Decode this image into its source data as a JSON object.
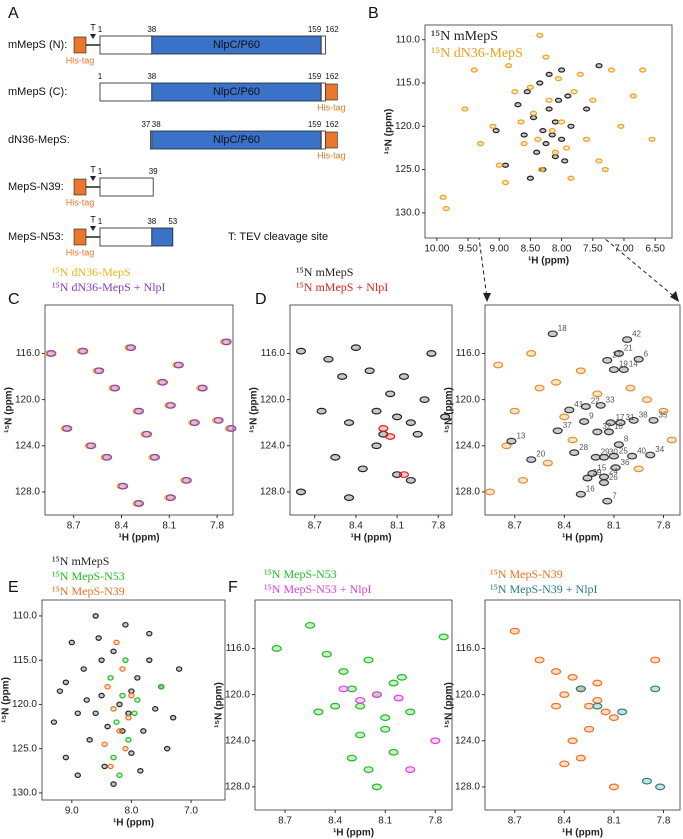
{
  "panel_a": {
    "letter": "A",
    "domain_name": "NlpC/P60",
    "tag_label": "His-tag",
    "tev_label": "T",
    "key": "T: TEV cleavage site",
    "rows": [
      {
        "label": "mMepS (N):",
        "residues": [
          1,
          38,
          159,
          162
        ],
        "domain": 1,
        "tag": "N",
        "tev": true
      },
      {
        "label": "mMepS (C):",
        "residues": [
          1,
          38,
          159,
          162
        ],
        "domain": 1,
        "tag": "C",
        "tev": false
      },
      {
        "label": "dN36-MepS:",
        "residues": [
          37,
          38,
          159,
          162
        ],
        "domain": 1,
        "tag": "C",
        "tev": false
      },
      {
        "label": "MepS-N39:",
        "residues": [
          1,
          39
        ],
        "domain": null,
        "tag": "N",
        "tev": true
      },
      {
        "label": "MepS-N53:",
        "residues": [
          1,
          38,
          53
        ],
        "domain": 1,
        "tag": "N",
        "tev": true
      }
    ]
  },
  "chart_data": [
    {
      "type": "scatter",
      "panel": "B",
      "xlabel": "¹H (ppm)",
      "ylabel": "¹⁵N (ppm)",
      "y_inverted": true,
      "legend": "inside",
      "xlim": [
        10.19,
        6.23
      ],
      "ylim": [
        108.3,
        132.9
      ],
      "xticks": [
        {
          "value": 10,
          "label": "10.00"
        },
        {
          "value": 9.5,
          "label": "9.50"
        },
        {
          "value": 9,
          "label": "9.00"
        },
        {
          "value": 8.5,
          "label": "8.50"
        },
        {
          "value": 8,
          "label": "8.00"
        },
        {
          "value": 7.5,
          "label": "7.50"
        },
        {
          "value": 7,
          "label": "7.00"
        },
        {
          "value": 6.5,
          "label": "6.50"
        }
      ],
      "yticks": [
        {
          "value": 110,
          "label": "110.0"
        },
        {
          "value": 115,
          "label": "115.0"
        },
        {
          "value": 120,
          "label": "120.0"
        },
        {
          "value": 125,
          "label": "125.0"
        },
        {
          "value": 130,
          "label": "130.0"
        }
      ],
      "series": [
        {
          "name": "¹⁵N mMepS",
          "color": "#222222",
          "x": [
            9.05,
            8.9,
            8.7,
            8.6,
            8.55,
            8.45,
            8.4,
            8.35,
            8.3,
            8.25,
            8.2,
            8.15,
            8.1,
            8.05,
            8.0,
            7.95,
            7.9,
            7.85,
            8.5,
            8.3,
            8.2,
            8.1,
            8.0,
            7.6,
            7.4
          ],
          "values": [
            120.5,
            124.5,
            117.5,
            121,
            116,
            119,
            123,
            115,
            120.5,
            122,
            118,
            121,
            119.5,
            117,
            121.5,
            124,
            116.5,
            120,
            126,
            125,
            114,
            123.5,
            113.5,
            118,
            113
          ]
        },
        {
          "name": "¹⁵N dN36-MepS",
          "color": "#f0a020",
          "x": [
            9.9,
            9.85,
            9.55,
            9.4,
            9.3,
            9.1,
            9.0,
            8.85,
            8.75,
            8.65,
            8.6,
            8.5,
            8.45,
            8.38,
            8.32,
            8.25,
            8.2,
            8.15,
            8.1,
            8.05,
            8.0,
            7.92,
            7.85,
            7.8,
            7.7,
            7.6,
            7.5,
            7.4,
            7.3,
            7.2,
            7.05,
            6.85,
            6.7,
            6.55,
            8.35,
            8.9
          ],
          "values": [
            128.2,
            129.5,
            118,
            113.5,
            122,
            120,
            124.5,
            113,
            116,
            119.5,
            122,
            115.5,
            118.5,
            121.5,
            125,
            112,
            117,
            120.5,
            123,
            114.5,
            119.5,
            122.5,
            126,
            116,
            114,
            121.5,
            117,
            124,
            125,
            113.5,
            120,
            116.5,
            113.5,
            121.5,
            109.5,
            126.5
          ]
        }
      ]
    },
    {
      "type": "scatter",
      "panel": "C",
      "xlabel": "¹H (ppm)",
      "ylabel": "¹⁵N (ppm)",
      "y_inverted": true,
      "legend": "above",
      "xlim": [
        8.88,
        7.7
      ],
      "ylim": [
        111.8,
        130
      ],
      "xticks": [
        8.7,
        8.4,
        8.1,
        7.8
      ],
      "yticks": [
        {
          "value": 116,
          "label": "116.0"
        },
        {
          "value": 120,
          "label": "120.0"
        },
        {
          "value": 124,
          "label": "124.0"
        },
        {
          "value": 128,
          "label": "128.0"
        }
      ],
      "series": [
        {
          "name": "¹⁵N dN36-MepS",
          "color": "#f2b21c",
          "x": [
            8.85,
            8.65,
            8.55,
            8.45,
            8.35,
            8.3,
            8.25,
            8.15,
            8.1,
            8.05,
            7.95,
            7.9,
            7.8,
            7.72,
            8.5,
            8.2,
            8.0,
            8.4,
            8.6,
            8.75,
            7.75,
            8.1,
            8.3
          ],
          "values": [
            116,
            115.8,
            117.5,
            119,
            115.5,
            121,
            123,
            118.5,
            120.5,
            117,
            122,
            119,
            121.8,
            122.5,
            125,
            125,
            127,
            127.5,
            124,
            122.5,
            115,
            128.5,
            129
          ]
        },
        {
          "name": "¹⁵N dN36-MepS + NlpI",
          "color": "#8a3cc8",
          "x": [
            8.84,
            8.64,
            8.54,
            8.44,
            8.34,
            8.29,
            8.24,
            8.14,
            8.09,
            8.04,
            7.94,
            7.89,
            7.79,
            7.71,
            8.49,
            8.19,
            7.99,
            8.39,
            8.59,
            8.74,
            7.74,
            8.09,
            8.29
          ],
          "values": [
            116,
            115.8,
            117.5,
            119,
            115.5,
            121,
            123,
            118.5,
            120.5,
            117,
            122,
            119,
            121.8,
            122.5,
            125,
            125,
            127,
            127.5,
            124,
            122.5,
            115,
            128.5,
            129
          ]
        }
      ]
    },
    {
      "type": "scatter",
      "panel": "D",
      "xlabel": "¹H (ppm)",
      "ylabel": "¹⁵N (ppm)",
      "y_inverted": true,
      "legend": "above",
      "xlim": [
        8.88,
        7.7
      ],
      "ylim": [
        111.8,
        130
      ],
      "xticks": [
        8.7,
        8.4,
        8.1,
        7.8
      ],
      "yticks": [
        {
          "value": 116,
          "label": "116.0"
        },
        {
          "value": 120,
          "label": "120.0"
        },
        {
          "value": 124,
          "label": "124.0"
        },
        {
          "value": 128,
          "label": "128.0"
        }
      ],
      "series": [
        {
          "name": "¹⁵N mMepS",
          "color": "#222222",
          "x": [
            8.8,
            8.6,
            8.5,
            8.45,
            8.4,
            8.3,
            8.25,
            8.2,
            8.15,
            8.1,
            8.05,
            8.0,
            7.9,
            7.85,
            7.75,
            8.65,
            8.55,
            8.35,
            8.0,
            8.25,
            8.45,
            8.1,
            7.95,
            8.8
          ],
          "values": [
            115.8,
            116.5,
            118,
            122,
            115.5,
            117.5,
            121,
            123,
            119.5,
            121.5,
            118,
            122,
            120,
            116,
            121.5,
            121,
            125,
            126,
            127,
            124,
            128.5,
            126.5,
            123,
            128
          ]
        },
        {
          "name": "¹⁵N mMepS + NlpI",
          "color": "#e02020",
          "x": [
            8.2,
            8.15,
            8.05
          ],
          "values": [
            122.5,
            123.2,
            126.5
          ]
        }
      ]
    },
    {
      "type": "scatter",
      "xlabel": "¹H (ppm)",
      "ylabel": "¹⁵N (ppm)",
      "y_inverted": true,
      "legend": "none",
      "xlim": [
        8.88,
        7.7
      ],
      "ylim": [
        111.8,
        130
      ],
      "xticks": [
        8.7,
        8.4,
        8.1,
        7.8
      ],
      "yticks": [
        {
          "value": 116,
          "label": "116.0"
        },
        {
          "value": 120,
          "label": "120.0"
        },
        {
          "value": 124,
          "label": "124.0"
        },
        {
          "value": 128,
          "label": "128.0"
        }
      ],
      "series": [
        {
          "color": "#e0902a",
          "x": [
            8.8,
            8.75,
            8.6,
            8.55,
            8.45,
            8.4,
            8.3,
            8.2,
            8.0,
            7.9,
            7.8,
            7.75,
            8.65,
            8.5,
            8.35,
            7.95,
            8.85,
            8.7
          ],
          "values": [
            117,
            124,
            116,
            119,
            118.5,
            121.5,
            117.5,
            119.5,
            119,
            120,
            121,
            123.5,
            127,
            125.5,
            123.5,
            126,
            128,
            121
          ]
        },
        {
          "color": "#333333",
          "x": [
            8.47,
            8.02,
            8.07,
            8.14,
            7.95,
            8.1,
            8.04,
            8.27,
            8.18,
            8.37,
            8.28,
            8.44,
            8.12,
            8.06,
            7.98,
            7.86,
            8.72,
            8.2,
            8.13,
            8.07,
            8.34,
            8.21,
            8.16,
            8.1,
            7.99,
            7.88,
            8.6,
            8.09,
            8.16,
            8.26,
            8.23,
            8.16,
            8.3,
            8.14
          ],
          "values": [
            114.3,
            114.8,
            116,
            116.6,
            116.5,
            117.4,
            117.4,
            120.6,
            120.5,
            120.9,
            121.9,
            122.7,
            122,
            122,
            121.8,
            121.8,
            123.6,
            122.8,
            122.8,
            123.9,
            124.6,
            125,
            125,
            124.9,
            124.9,
            124.8,
            125.2,
            125.9,
            126.7,
            126.8,
            126.4,
            127.2,
            128.2,
            128.8
          ],
          "point_labels": [
            "18",
            "42",
            "21",
            "27",
            "6",
            "19",
            "14",
            "22",
            "33",
            "41",
            "9",
            "37",
            "17",
            "31",
            "38",
            "35",
            "13",
            "32",
            "10",
            "8",
            "28",
            "29",
            "30",
            "25",
            "40",
            "34",
            "20",
            "36",
            "24",
            "39",
            "15",
            "26",
            "16",
            "7"
          ]
        }
      ]
    },
    {
      "type": "scatter",
      "panel": "E",
      "xlabel": "¹H (ppm)",
      "ylabel": "¹⁵N (ppm)",
      "y_inverted": true,
      "legend": "above",
      "xlim": [
        9.5,
        6.43
      ],
      "ylim": [
        108.2,
        130.8
      ],
      "xticks": [
        {
          "value": 9,
          "label": "9.0"
        },
        {
          "value": 8,
          "label": "8.0"
        },
        {
          "value": 7,
          "label": "7.0"
        }
      ],
      "yticks": [
        {
          "value": 110,
          "label": "110.0"
        },
        {
          "value": 115,
          "label": "115.0"
        },
        {
          "value": 120,
          "label": "120.0"
        },
        {
          "value": 125,
          "label": "125.0"
        },
        {
          "value": 130,
          "label": "130.0"
        }
      ],
      "series": [
        {
          "name": "¹⁵N mMepS",
          "color": "#222222",
          "x": [
            9.3,
            9.2,
            9.1,
            9.0,
            8.9,
            8.8,
            8.7,
            8.6,
            8.5,
            8.45,
            8.4,
            8.3,
            8.2,
            8.1,
            8.0,
            7.9,
            7.8,
            7.7,
            7.6,
            7.5,
            7.4,
            7.3,
            8.9,
            8.6,
            8.3,
            8.0,
            7.7,
            9.1,
            8.5,
            8.15,
            7.85,
            7.2,
            8.75,
            8.55,
            8.05
          ],
          "values": [
            122,
            118.5,
            126,
            113,
            121,
            116,
            124,
            110,
            119,
            127,
            122.5,
            114,
            120,
            111,
            125.5,
            117,
            123,
            115,
            120.5,
            118,
            125,
            121.5,
            128,
            121,
            129,
            118.5,
            112,
            117.5,
            115,
            123,
            127.5,
            116,
            119.5,
            112.5,
            121
          ]
        },
        {
          "name": "¹⁵N MepS-N53",
          "color": "#22bb22",
          "x": [
            8.35,
            8.25,
            8.15,
            8.05,
            7.95,
            8.3,
            8.1,
            8.2,
            7.9,
            7.5
          ],
          "values": [
            117,
            122,
            119,
            124,
            121,
            126,
            115,
            128,
            119.5,
            118
          ]
        },
        {
          "name": "¹⁵N MepS-N39",
          "color": "#f07020",
          "x": [
            8.4,
            8.3,
            8.2,
            8.1,
            8.35,
            8.15,
            8.25,
            8.05,
            8.45,
            8.0
          ],
          "values": [
            118,
            120.5,
            123,
            125,
            127,
            116,
            113,
            121.5,
            124.5,
            119
          ]
        }
      ]
    },
    {
      "type": "scatter",
      "panel": "F",
      "xlabel": "¹H (ppm)",
      "ylabel": "¹⁵N (ppm)",
      "y_inverted": true,
      "legend": "above",
      "xlim": [
        8.88,
        7.7
      ],
      "ylim": [
        111.8,
        130
      ],
      "xticks": [
        8.7,
        8.4,
        8.1,
        7.8
      ],
      "yticks": [
        {
          "value": 116,
          "label": "116.0"
        },
        {
          "value": 120,
          "label": "120.0"
        },
        {
          "value": 124,
          "label": "124.0"
        },
        {
          "value": 128,
          "label": "128.0"
        }
      ],
      "series": [
        {
          "name": "¹⁵N MepS-N53",
          "color": "#22bb22",
          "x": [
            8.75,
            8.55,
            8.45,
            8.35,
            8.3,
            8.25,
            8.2,
            8.15,
            8.1,
            8.05,
            8.0,
            7.95,
            8.4,
            8.25,
            8.1,
            8.3,
            8.2,
            8.05,
            8.5,
            7.75,
            8.15
          ],
          "values": [
            116,
            114,
            116.5,
            118,
            119.5,
            121,
            117,
            120,
            122,
            119,
            118.5,
            121.5,
            121,
            123.5,
            123,
            125.5,
            126.5,
            125,
            121.5,
            115,
            128
          ]
        },
        {
          "name": "¹⁵N MepS-N53 + NlpI",
          "color": "#e040e0",
          "x": [
            8.35,
            8.25,
            8.15,
            8.02,
            7.95,
            7.8
          ],
          "values": [
            119.5,
            120.5,
            120,
            120.3,
            126.5,
            124
          ]
        }
      ]
    },
    {
      "type": "scatter",
      "xlabel": "¹H (ppm)",
      "ylabel": "¹⁵N (ppm)",
      "y_inverted": true,
      "legend": "above",
      "xlim": [
        8.88,
        7.7
      ],
      "ylim": [
        111.8,
        130
      ],
      "xticks": [
        8.7,
        8.4,
        8.1,
        7.8
      ],
      "yticks": [
        {
          "value": 116,
          "label": "116.0"
        },
        {
          "value": 120,
          "label": "120.0"
        },
        {
          "value": 124,
          "label": "124.0"
        },
        {
          "value": 128,
          "label": "128.0"
        }
      ],
      "series": [
        {
          "name": "¹⁵N MepS-N39",
          "color": "#f07020",
          "x": [
            8.7,
            8.55,
            8.45,
            8.4,
            8.35,
            8.3,
            8.25,
            8.2,
            8.15,
            8.1,
            8.35,
            8.25,
            8.4,
            8.3,
            8.1,
            7.85,
            8.2,
            8.45
          ],
          "values": [
            114.5,
            117,
            118,
            120,
            118.5,
            119.5,
            121,
            120.5,
            121.5,
            122,
            124,
            123,
            126,
            125.5,
            128,
            117,
            119,
            121
          ]
        },
        {
          "name": "¹⁵N MepS-N39 + NlpI",
          "color": "#2a7f7f",
          "x": [
            8.3,
            8.2,
            8.05,
            7.85,
            7.9,
            7.82
          ],
          "values": [
            119.5,
            121,
            121.5,
            119.5,
            127.5,
            128
          ]
        }
      ]
    }
  ]
}
